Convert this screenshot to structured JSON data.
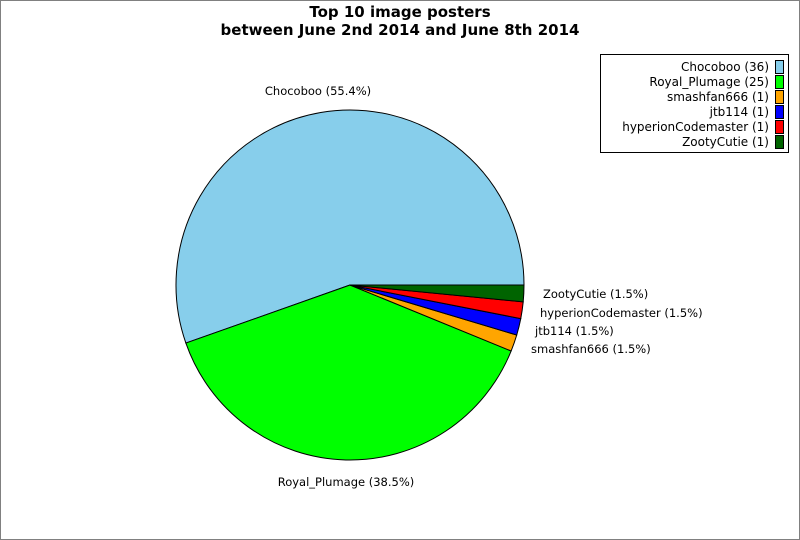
{
  "title": {
    "line1": "Top 10 image posters",
    "line2": "between June 2nd 2014 and June 8th 2014"
  },
  "chart_data": {
    "type": "pie",
    "title": "Top 10 image posters\nbetween June 2nd 2014 and June 8th 2014",
    "legend_position": "top-right",
    "slices": [
      {
        "label": "Chocoboo",
        "value": 36,
        "percent": 55.4,
        "slice_label": "Chocoboo (55.4%)",
        "legend": "Chocoboo (36)",
        "color": "#87ceeb"
      },
      {
        "label": "Royal_Plumage",
        "value": 25,
        "percent": 38.5,
        "slice_label": "Royal_Plumage (38.5%)",
        "legend": "Royal_Plumage (25)",
        "color": "#00ff00"
      },
      {
        "label": "smashfan666",
        "value": 1,
        "percent": 1.5,
        "slice_label": "smashfan666 (1.5%)",
        "legend": "smashfan666 (1)",
        "color": "#ffa500"
      },
      {
        "label": "jtb114",
        "value": 1,
        "percent": 1.5,
        "slice_label": "jtb114 (1.5%)",
        "legend": "jtb114 (1)",
        "color": "#0000ff"
      },
      {
        "label": "hyperionCodemaster",
        "value": 1,
        "percent": 1.5,
        "slice_label": "hyperionCodemaster (1.5%)",
        "legend": "hyperionCodemaster (1)",
        "color": "#ff0000"
      },
      {
        "label": "ZootyCutie",
        "value": 1,
        "percent": 1.5,
        "slice_label": "ZootyCutie (1.5%)",
        "legend": "ZootyCutie (1)",
        "color": "#006400"
      }
    ]
  }
}
